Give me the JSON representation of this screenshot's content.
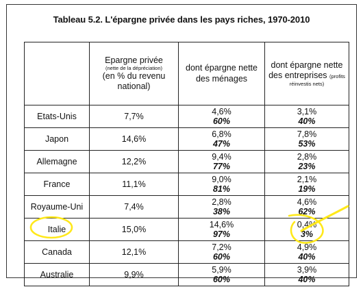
{
  "title": "Tableau 5.2. L'épargne privée dans les pays riches, 1970-2010",
  "headers": {
    "col1_line1": "Epargne privée",
    "col1_note": "(nette de la dépréciation)",
    "col1_line2": "(en % du revenu",
    "col1_line3": "national)",
    "col2_line1": "dont épargne nette",
    "col2_line2": "des ménages",
    "col3_line1": "dont épargne nette",
    "col3_line2": "des entreprises",
    "col3_note1": "(profits",
    "col3_note2": "réinvestis nets)"
  },
  "rows": [
    {
      "country": "Etats-Unis",
      "savings": "7,7%",
      "hh_pct": "4,6%",
      "hh_share": "60%",
      "firm_pct": "3,1%",
      "firm_share": "40%"
    },
    {
      "country": "Japon",
      "savings": "14,6%",
      "hh_pct": "6,8%",
      "hh_share": "47%",
      "firm_pct": "7,8%",
      "firm_share": "53%"
    },
    {
      "country": "Allemagne",
      "savings": "12,2%",
      "hh_pct": "9,4%",
      "hh_share": "77%",
      "firm_pct": "2,8%",
      "firm_share": "23%"
    },
    {
      "country": "France",
      "savings": "11,1%",
      "hh_pct": "9,0%",
      "hh_share": "81%",
      "firm_pct": "2,1%",
      "firm_share": "19%"
    },
    {
      "country": "Royaume-Uni",
      "savings": "7,4%",
      "hh_pct": "2,8%",
      "hh_share": "38%",
      "firm_pct": "4,6%",
      "firm_share": "62%"
    },
    {
      "country": "Italie",
      "savings": "15,0%",
      "hh_pct": "14,6%",
      "hh_share": "97%",
      "firm_pct": "0,4%",
      "firm_share": "3%"
    },
    {
      "country": "Canada",
      "savings": "12,1%",
      "hh_pct": "7,2%",
      "hh_share": "60%",
      "firm_pct": "4,9%",
      "firm_share": "40%"
    },
    {
      "country": "Australie",
      "savings": "9,9%",
      "hh_pct": "5,9%",
      "hh_share": "60%",
      "firm_pct": "3,9%",
      "firm_share": "40%"
    }
  ],
  "colors": {
    "highlight": "#ffe81a"
  }
}
